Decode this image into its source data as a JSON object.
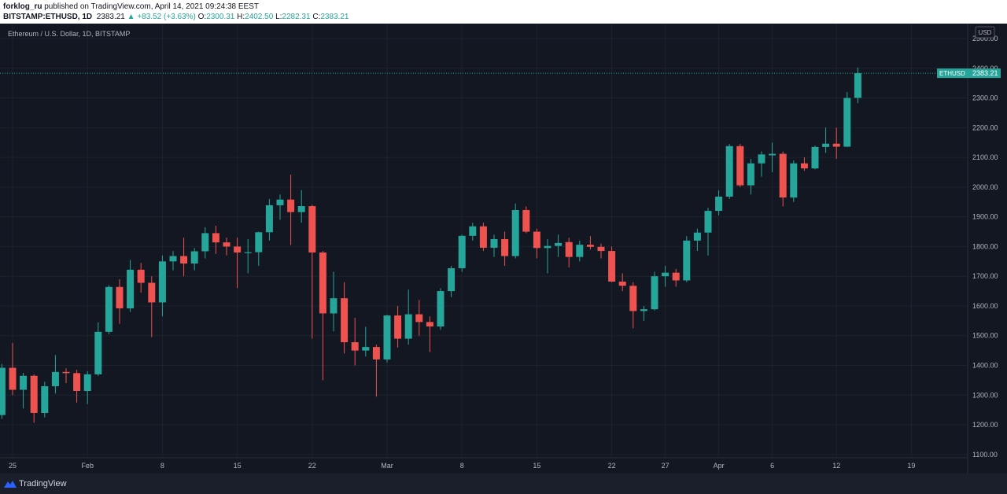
{
  "header": {
    "publisher": "forklog_ru",
    "published": "published on TradingView.com, April 14, 2021 09:24:38 EEST",
    "symbol": "BITSTAMP:ETHUSD, 1D",
    "last": "2383.21",
    "change": "+83.52 (+3.63%)",
    "ohlc": [
      {
        "label": "O:",
        "value": "2300.31"
      },
      {
        "label": "H:",
        "value": "2402.50"
      },
      {
        "label": "L:",
        "value": "2282.31"
      },
      {
        "label": "C:",
        "value": "2383.21"
      }
    ]
  },
  "chart_data": {
    "type": "candlestick",
    "title": "Ethereum / U.S. Dollar, 1D, BITSTAMP",
    "y_label": "USD",
    "categories": [
      null,
      "25",
      null,
      null,
      null,
      null,
      null,
      null,
      "Feb",
      null,
      null,
      null,
      null,
      null,
      null,
      "8",
      null,
      null,
      null,
      null,
      null,
      null,
      "15",
      null,
      null,
      null,
      null,
      null,
      null,
      "22",
      null,
      null,
      null,
      null,
      null,
      null,
      "Mar",
      null,
      null,
      null,
      null,
      null,
      null,
      "8",
      null,
      null,
      null,
      null,
      null,
      null,
      "15",
      null,
      null,
      null,
      null,
      null,
      null,
      "22",
      null,
      null,
      null,
      null,
      "27",
      null,
      null,
      null,
      null,
      "Apr",
      null,
      null,
      null,
      null,
      "6",
      null,
      null,
      null,
      null,
      null,
      "12",
      null,
      null,
      null,
      null,
      null,
      null,
      "19"
    ],
    "series": [
      {
        "name": "ETHUSD",
        "up_color": "#26a69a",
        "down_color": "#ef5350",
        "open": [
          1233,
          1392,
          1318,
          1365,
          1240,
          1330,
          1378,
          1374,
          1314,
          1370,
          1513,
          1664,
          1592,
          1722,
          1678,
          1612,
          1750,
          1768,
          1743,
          1784,
          1845,
          1814,
          1800,
          1778,
          1781,
          1848,
          1939,
          1958,
          1916,
          1936,
          1780,
          1575,
          1626,
          1478,
          1450,
          1462,
          1420,
          1568,
          1490,
          1572,
          1546,
          1531,
          1650,
          1727,
          1836,
          1868,
          1796,
          1825,
          1768,
          1923,
          1850,
          1795,
          1802,
          1815,
          1765,
          1806,
          1799,
          1785,
          1682,
          1668,
          1583,
          1589,
          1700,
          1712,
          1686,
          1820,
          1847,
          1920,
          1968,
          2138,
          2006,
          2080,
          2107,
          2112,
          1965,
          2080,
          2063,
          2135,
          2146,
          2136,
          2300.31,
          null,
          null,
          null,
          null,
          null
        ],
        "high": [
          1405,
          1476,
          1375,
          1370,
          1345,
          1435,
          1390,
          1385,
          1380,
          1545,
          1670,
          1690,
          1755,
          1745,
          1700,
          1770,
          1785,
          1830,
          1795,
          1865,
          1870,
          1830,
          1830,
          1825,
          1850,
          1960,
          1975,
          2042,
          1990,
          1940,
          1785,
          1715,
          1680,
          1560,
          1530,
          1470,
          1570,
          1600,
          1655,
          1620,
          1565,
          1660,
          1735,
          1840,
          1880,
          1880,
          1840,
          1850,
          1945,
          1935,
          1860,
          1825,
          1840,
          1830,
          1820,
          1835,
          1810,
          1800,
          1710,
          1680,
          1600,
          1715,
          1735,
          1725,
          1835,
          1860,
          1930,
          1990,
          2145,
          2145,
          2095,
          2120,
          2150,
          2120,
          2090,
          2100,
          2140,
          2200,
          2200,
          2320,
          2402.5,
          null,
          null,
          null,
          null,
          null
        ],
        "low": [
          1220,
          1300,
          1255,
          1207,
          1225,
          1305,
          1340,
          1275,
          1270,
          1365,
          1505,
          1540,
          1580,
          1645,
          1495,
          1565,
          1720,
          1700,
          1720,
          1760,
          1775,
          1770,
          1660,
          1710,
          1735,
          1820,
          1890,
          1805,
          1880,
          1490,
          1350,
          1515,
          1440,
          1400,
          1430,
          1295,
          1410,
          1460,
          1470,
          1500,
          1445,
          1520,
          1630,
          1715,
          1820,
          1785,
          1765,
          1735,
          1760,
          1845,
          1760,
          1710,
          1765,
          1730,
          1750,
          1790,
          1760,
          1680,
          1650,
          1525,
          1550,
          1585,
          1665,
          1665,
          1680,
          1785,
          1770,
          1905,
          1960,
          2000,
          1975,
          2035,
          2050,
          1935,
          1950,
          2055,
          2060,
          2115,
          2095,
          2135,
          2282.31,
          null,
          null,
          null,
          null,
          null
        ],
        "close": [
          1392,
          1318,
          1365,
          1240,
          1330,
          1378,
          1374,
          1314,
          1370,
          1513,
          1664,
          1592,
          1722,
          1678,
          1612,
          1750,
          1768,
          1743,
          1784,
          1845,
          1814,
          1800,
          1780,
          1781,
          1848,
          1939,
          1958,
          1916,
          1936,
          1780,
          1575,
          1626,
          1478,
          1450,
          1462,
          1420,
          1568,
          1490,
          1572,
          1546,
          1531,
          1650,
          1727,
          1836,
          1868,
          1796,
          1825,
          1768,
          1923,
          1850,
          1795,
          1802,
          1812,
          1765,
          1806,
          1799,
          1785,
          1682,
          1668,
          1583,
          1589,
          1700,
          1712,
          1686,
          1820,
          1847,
          1920,
          1968,
          2138,
          2006,
          2080,
          2110,
          2112,
          1965,
          2080,
          2063,
          2135,
          2146,
          2136,
          2300,
          2383.21,
          null,
          null,
          null,
          null,
          null
        ]
      }
    ],
    "ylim": [
      1089,
      2545
    ],
    "yticks": [
      {
        "value": 1100,
        "label": "1100.00"
      },
      {
        "value": 1200,
        "label": "1200.00"
      },
      {
        "value": 1300,
        "label": "1300.00"
      },
      {
        "value": 1400,
        "label": "1400.00"
      },
      {
        "value": 1500,
        "label": "1500.00"
      },
      {
        "value": 1600,
        "label": "1600.00"
      },
      {
        "value": 1700,
        "label": "1700.00"
      },
      {
        "value": 1800,
        "label": "1800.00"
      },
      {
        "value": 1900,
        "label": "1900.00"
      },
      {
        "value": 2000,
        "label": "2000.00"
      },
      {
        "value": 2100,
        "label": "2100.00"
      },
      {
        "value": 2200,
        "label": "2200.00"
      },
      {
        "value": 2300,
        "label": "2300.00"
      },
      {
        "value": 2400,
        "label": "2400.00"
      },
      {
        "value": 2500,
        "label": "2500.00"
      }
    ],
    "grid": true,
    "last_price_line": true
  },
  "footer": {
    "brand": "TradingView"
  }
}
